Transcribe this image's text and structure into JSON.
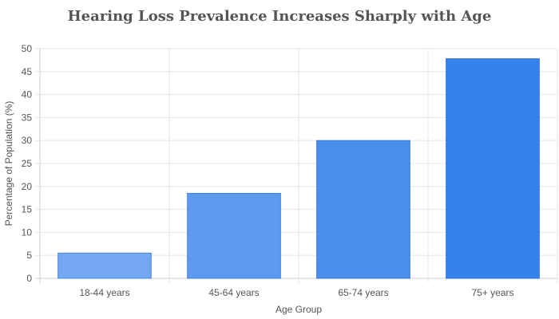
{
  "chart_data": {
    "type": "bar",
    "title": "Hearing Loss Prevalence Increases Sharply with Age",
    "xlabel": "Age Group",
    "ylabel": "Percentage of Population (%)",
    "categories": [
      "18-44 years",
      "45-64 years",
      "65-74 years",
      "75+ years"
    ],
    "values": [
      5.5,
      18.5,
      30,
      47.8
    ],
    "ylim": [
      0,
      50
    ],
    "yticks": [
      "0",
      "5",
      "10",
      "15",
      "20",
      "25",
      "30",
      "35",
      "40",
      "45",
      "50"
    ],
    "grid": true,
    "legend": "none",
    "colors": {
      "bars": [
        "#74a7f1",
        "#5f9aef",
        "#4b8deb",
        "#3483ea"
      ],
      "bar_borders": [
        "#4a86e0",
        "#3f7fe0",
        "#3577dd",
        "#2a6fd8"
      ],
      "grid": "#e6e6e6",
      "axis": "#cfcfcf"
    }
  }
}
